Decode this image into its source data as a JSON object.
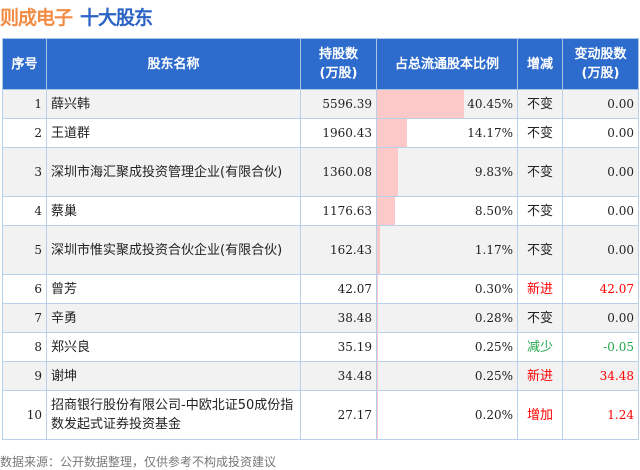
{
  "title": {
    "company": "则成电子",
    "subtitle": "十大股东"
  },
  "headers": [
    "序号",
    "股东名称",
    "持股数\n(万股)",
    "占总流通股本比例",
    "增减",
    "变动股数\n(万股)"
  ],
  "colors": {
    "increase": "#ff0000",
    "decrease": "#22a84a",
    "neutral": "#222222",
    "bar": "#fcc8c8",
    "header": "#2d6bcc"
  },
  "rows": [
    {
      "rank": "1",
      "name": "薛兴韩",
      "shares": "5596.39",
      "ratio": "40.45%",
      "ratio_value": 40.45,
      "change": "不变",
      "change_type": "neutral",
      "delta": "0.00"
    },
    {
      "rank": "2",
      "name": "王道群",
      "shares": "1960.43",
      "ratio": "14.17%",
      "ratio_value": 14.17,
      "change": "不变",
      "change_type": "neutral",
      "delta": "0.00"
    },
    {
      "rank": "3",
      "name": "深圳市海汇聚成投资管理企业(有限合伙)",
      "shares": "1360.08",
      "ratio": "9.83%",
      "ratio_value": 9.83,
      "change": "不变",
      "change_type": "neutral",
      "delta": "0.00"
    },
    {
      "rank": "4",
      "name": "蔡巢",
      "shares": "1176.63",
      "ratio": "8.50%",
      "ratio_value": 8.5,
      "change": "不变",
      "change_type": "neutral",
      "delta": "0.00"
    },
    {
      "rank": "5",
      "name": "深圳市惟实聚成投资合伙企业(有限合伙)",
      "shares": "162.43",
      "ratio": "1.17%",
      "ratio_value": 1.17,
      "change": "不变",
      "change_type": "neutral",
      "delta": "0.00"
    },
    {
      "rank": "6",
      "name": "曾芳",
      "shares": "42.07",
      "ratio": "0.30%",
      "ratio_value": 0.3,
      "change": "新进",
      "change_type": "increase",
      "delta": "42.07"
    },
    {
      "rank": "7",
      "name": "辛勇",
      "shares": "38.48",
      "ratio": "0.28%",
      "ratio_value": 0.28,
      "change": "不变",
      "change_type": "neutral",
      "delta": "0.00"
    },
    {
      "rank": "8",
      "name": "郑兴良",
      "shares": "35.19",
      "ratio": "0.25%",
      "ratio_value": 0.25,
      "change": "减少",
      "change_type": "decrease",
      "delta": "-0.05"
    },
    {
      "rank": "9",
      "name": "谢坤",
      "shares": "34.48",
      "ratio": "0.25%",
      "ratio_value": 0.25,
      "change": "新进",
      "change_type": "increase",
      "delta": "34.48"
    },
    {
      "rank": "10",
      "name": "招商银行股份有限公司-中欧北证50成份指数发起式证券投资基金",
      "shares": "27.17",
      "ratio": "0.20%",
      "ratio_value": 0.2,
      "change": "增加",
      "change_type": "increase",
      "delta": "1.24"
    }
  ],
  "footer": "数据来源：公开数据整理，仅供参考不构成投资建议"
}
